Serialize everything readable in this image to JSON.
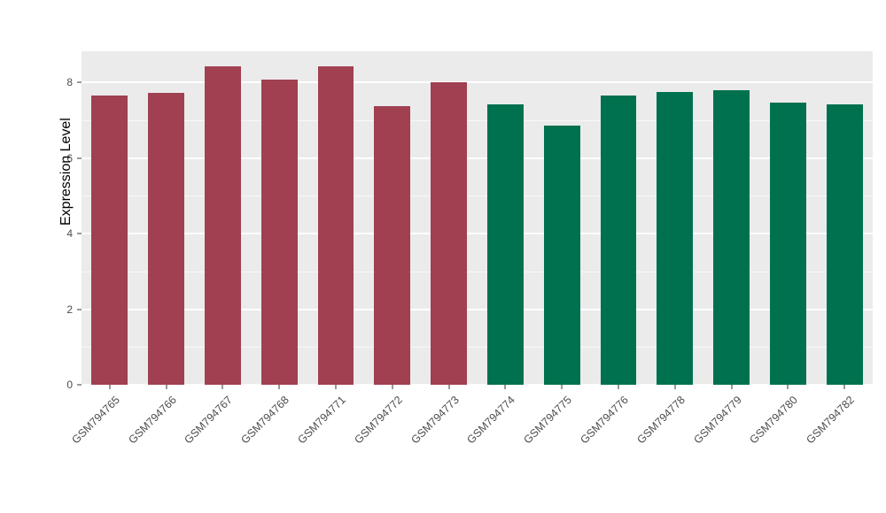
{
  "chart_data": {
    "type": "bar",
    "title": "",
    "xlabel": "",
    "ylabel": "Expression Level",
    "categories": [
      "GSM794765",
      "GSM794766",
      "GSM794767",
      "GSM794768",
      "GSM794771",
      "GSM794772",
      "GSM794773",
      "GSM794774",
      "GSM794775",
      "GSM794776",
      "GSM794778",
      "GSM794779",
      "GSM794780",
      "GSM794782"
    ],
    "values": [
      7.65,
      7.72,
      8.42,
      8.07,
      8.42,
      7.37,
      8.01,
      7.41,
      6.85,
      7.65,
      7.75,
      7.78,
      7.47,
      7.41
    ],
    "groups": [
      "red",
      "red",
      "red",
      "red",
      "red",
      "red",
      "red",
      "green",
      "green",
      "green",
      "green",
      "green",
      "green",
      "green"
    ],
    "group_colors": {
      "red": "#A04050",
      "green": "#00714E"
    },
    "yticks": [
      0,
      2,
      4,
      6,
      8
    ],
    "ytick_labels": [
      "0",
      "2",
      "4",
      "6",
      "8"
    ],
    "minor_ticks": [
      1,
      3,
      5,
      7
    ],
    "ylim": [
      0,
      8.82
    ],
    "panel_background": "#EBEBEB",
    "gridline_color": "#FFFFFF",
    "x_label_rotation": 45,
    "legend": "none"
  }
}
